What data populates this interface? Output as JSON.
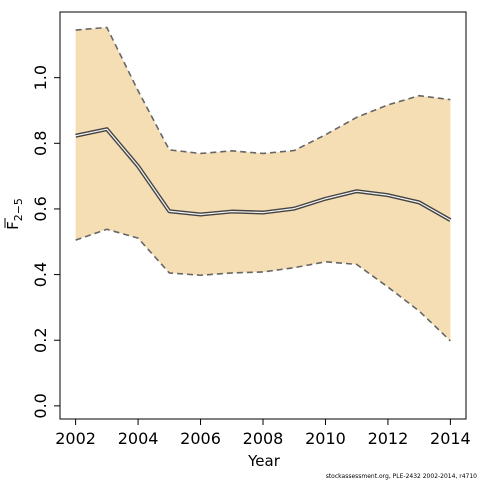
{
  "chart_data": {
    "type": "area",
    "xlabel": "Year",
    "ylabel": {
      "main": "F",
      "subscript": "2−5",
      "overline": true
    },
    "xlim": [
      2001.5,
      2014.5
    ],
    "ylim": [
      -0.04,
      1.2
    ],
    "x_ticks": [
      2002,
      2004,
      2006,
      2008,
      2010,
      2012,
      2014
    ],
    "x_tick_labels": [
      "2002",
      "2004",
      "2006",
      "2008",
      "2010",
      "2012",
      "2014"
    ],
    "y_ticks": [
      0.0,
      0.2,
      0.4,
      0.6,
      0.8,
      1.0
    ],
    "y_tick_labels": [
      "0.0",
      "0.2",
      "0.4",
      "0.6",
      "0.8",
      "1.0"
    ],
    "x": [
      2002,
      2003,
      2004,
      2005,
      2006,
      2007,
      2008,
      2009,
      2010,
      2011,
      2012,
      2013,
      2014
    ],
    "series": [
      {
        "role": "estimate",
        "color": "#444444",
        "style": "solid-double",
        "values": [
          0.823,
          0.843,
          0.73,
          0.593,
          0.583,
          0.592,
          0.589,
          0.601,
          0.631,
          0.654,
          0.642,
          0.62,
          0.566
        ]
      },
      {
        "role": "upper-bound",
        "color": "#666666",
        "style": "dashed",
        "values": [
          1.145,
          1.153,
          0.96,
          0.78,
          0.769,
          0.777,
          0.769,
          0.778,
          0.826,
          0.879,
          0.917,
          0.945,
          0.933
        ]
      },
      {
        "role": "lower-bound",
        "color": "#666666",
        "style": "dashed",
        "values": [
          0.505,
          0.538,
          0.511,
          0.405,
          0.398,
          0.405,
          0.408,
          0.421,
          0.439,
          0.431,
          0.362,
          0.289,
          0.198
        ]
      }
    ],
    "band_fill": "#F5DEB3",
    "grid": false,
    "legend": "none"
  },
  "footer_text": "stockassessment.org, PLE-2432  2002-2014, r4710"
}
